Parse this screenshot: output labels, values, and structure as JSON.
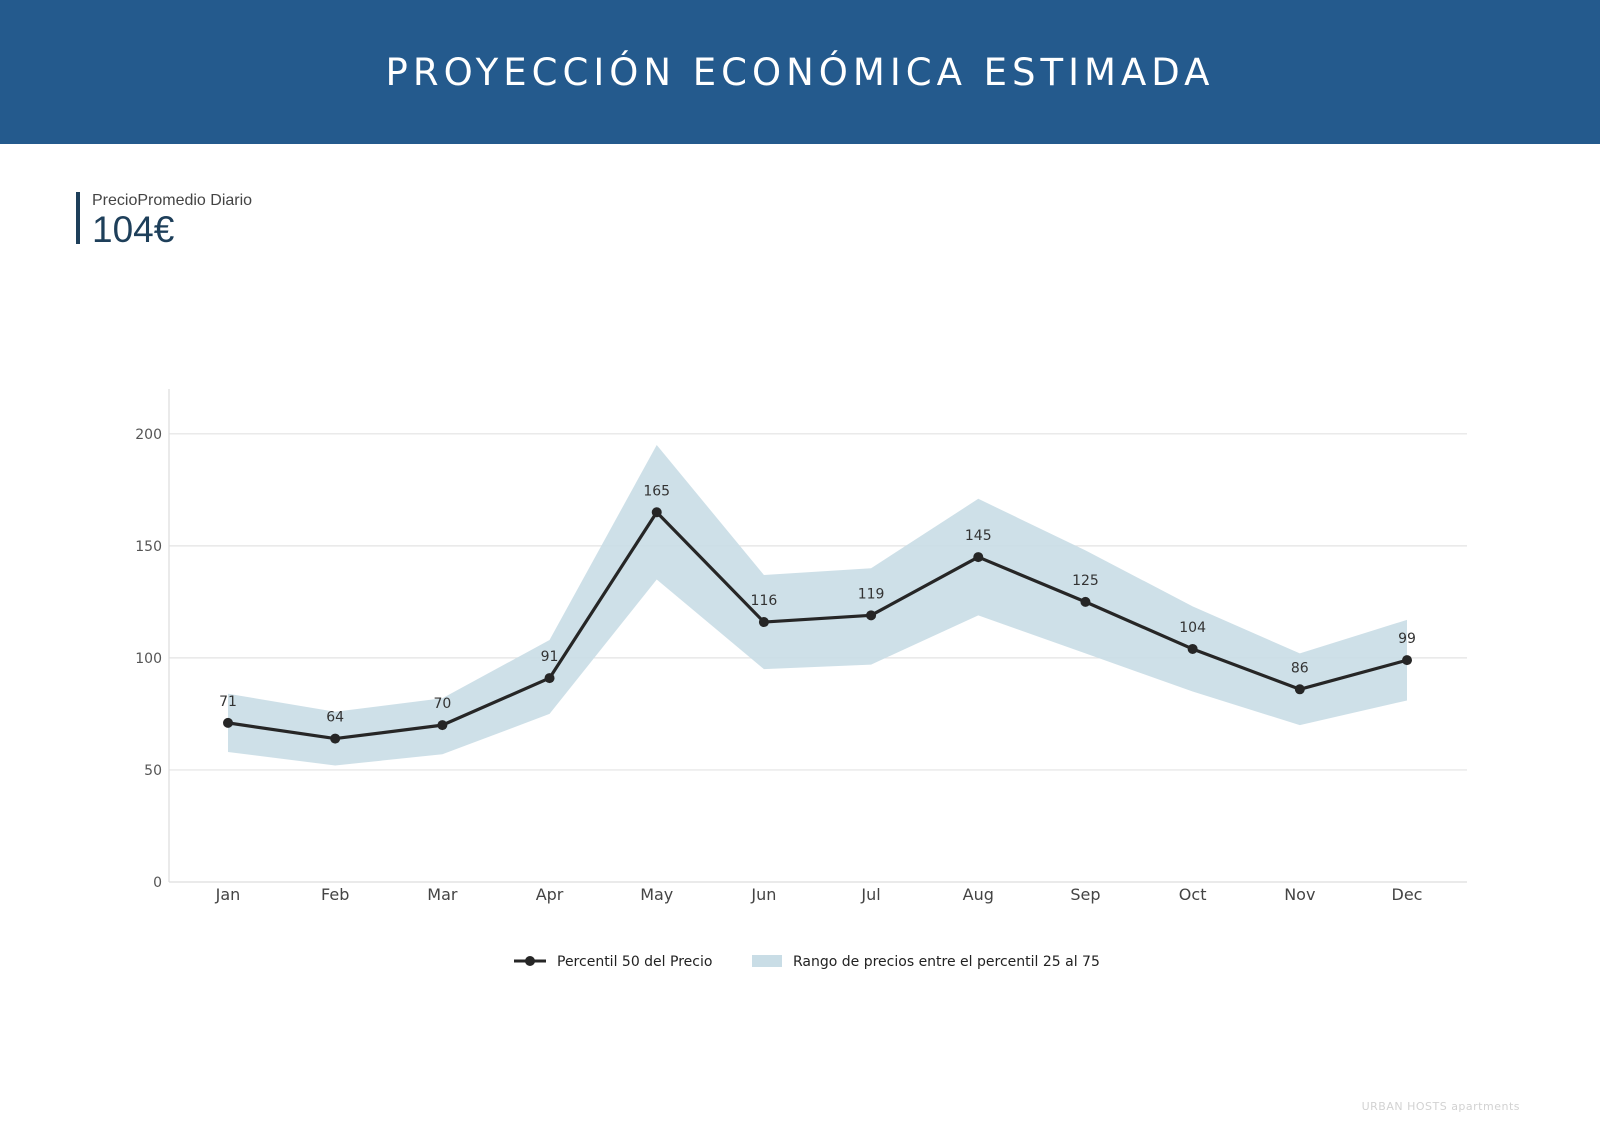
{
  "header": {
    "title": "PROYECCIÓN ECONÓMICA ESTIMADA"
  },
  "kpi": {
    "label": "PrecioPromedio Diario",
    "value": "104€"
  },
  "chart_data": {
    "type": "line",
    "categories": [
      "Jan",
      "Feb",
      "Mar",
      "Apr",
      "May",
      "Jun",
      "Jul",
      "Aug",
      "Sep",
      "Oct",
      "Nov",
      "Dec"
    ],
    "series": [
      {
        "name": "Percentil 50 del Precio",
        "type": "line",
        "color": "#262626",
        "values": [
          71,
          64,
          70,
          91,
          165,
          116,
          119,
          145,
          125,
          104,
          86,
          99
        ]
      }
    ],
    "band": {
      "name": "Rango de precios entre el percentil 25 al 75",
      "color": "#c9dde6",
      "lower": [
        58,
        52,
        57,
        75,
        135,
        95,
        97,
        119,
        102,
        85,
        70,
        81
      ],
      "upper": [
        84,
        76,
        82,
        108,
        195,
        137,
        140,
        171,
        148,
        123,
        102,
        117
      ]
    },
    "data_labels": [
      "71",
      "64",
      "70",
      "91",
      "165",
      "116",
      "119",
      "145",
      "125",
      "104",
      "86",
      "99"
    ],
    "y_ticks": [
      0,
      50,
      100,
      150,
      200
    ],
    "ylim": [
      0,
      220
    ],
    "grid": "horizontal",
    "legend": "bottom-center",
    "title": "",
    "xlabel": "",
    "ylabel": ""
  },
  "footer": {
    "brand": "URBAN HOSTS apartments"
  }
}
